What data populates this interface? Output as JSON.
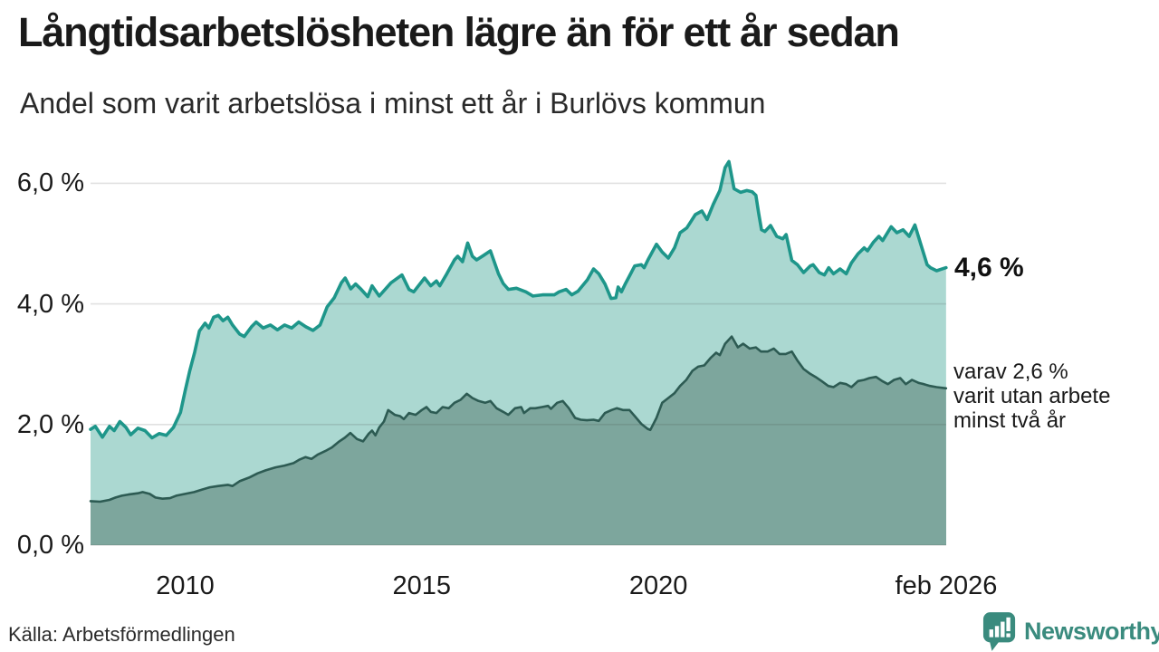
{
  "title": "Långtidsarbetslösheten lägre än för ett år sedan",
  "subtitle": "Andel som varit arbetslösa i minst ett år i Burlövs kommun",
  "source": "Källa: Arbetsförmedlingen",
  "branding": {
    "name": "Newsworthy",
    "color": "#3a8b7e",
    "icon": "bar-chart-speech-bubble-icon"
  },
  "annotations": {
    "latest_value_label": "4,6 %",
    "secondary_label_lines": [
      "varav 2,6 %",
      "varit utan arbete",
      "minst två år"
    ]
  },
  "chart_data": {
    "type": "area",
    "title": "Långtidsarbetslösheten lägre än för ett år sedan",
    "subtitle": "Andel som varit arbetslösa i minst ett år i Burlövs kommun",
    "unit": "%",
    "grid": "horizontal-only",
    "colors": {
      "line_1yr": "#1e968a",
      "fill_1yr": "#abd8d1",
      "line_2yr": "#2d5b53",
      "fill_2yr": "#7da69d",
      "gridline": "#d9d9d9"
    },
    "x_axis": {
      "range_years": [
        2008,
        2026.083
      ],
      "ticks": [
        {
          "label": "2010",
          "year": 2010
        },
        {
          "label": "2015",
          "year": 2015
        },
        {
          "label": "2020",
          "year": 2020
        },
        {
          "label": "feb 2026",
          "year": 2026.083
        }
      ]
    },
    "y_axis": {
      "range": [
        0,
        6.5
      ],
      "gridlines": [
        0,
        2,
        4,
        6
      ],
      "ticks": [
        {
          "label": "0,0 %",
          "value": 0
        },
        {
          "label": "2,0 %",
          "value": 2
        },
        {
          "label": "4,0 %",
          "value": 4
        },
        {
          "label": "6,0 %",
          "value": 6
        }
      ]
    },
    "series": [
      {
        "id": "minst_ett_ar",
        "name": "Andel som varit arbetslösa i minst ett år",
        "latest_value": 4.6,
        "latest_label": "4,6 %",
        "points": [
          [
            2008.0,
            1.92
          ],
          [
            2008.1,
            1.97
          ],
          [
            2008.25,
            1.79
          ],
          [
            2008.4,
            1.97
          ],
          [
            2008.5,
            1.9
          ],
          [
            2008.62,
            2.05
          ],
          [
            2008.75,
            1.95
          ],
          [
            2008.85,
            1.83
          ],
          [
            2009.0,
            1.94
          ],
          [
            2009.15,
            1.9
          ],
          [
            2009.3,
            1.78
          ],
          [
            2009.45,
            1.85
          ],
          [
            2009.6,
            1.82
          ],
          [
            2009.75,
            1.95
          ],
          [
            2009.9,
            2.2
          ],
          [
            2010.0,
            2.56
          ],
          [
            2010.1,
            2.9
          ],
          [
            2010.2,
            3.2
          ],
          [
            2010.3,
            3.55
          ],
          [
            2010.42,
            3.68
          ],
          [
            2010.5,
            3.6
          ],
          [
            2010.6,
            3.78
          ],
          [
            2010.7,
            3.81
          ],
          [
            2010.8,
            3.72
          ],
          [
            2010.9,
            3.78
          ],
          [
            2011.0,
            3.65
          ],
          [
            2011.15,
            3.5
          ],
          [
            2011.25,
            3.46
          ],
          [
            2011.4,
            3.62
          ],
          [
            2011.5,
            3.7
          ],
          [
            2011.65,
            3.6
          ],
          [
            2011.8,
            3.65
          ],
          [
            2011.95,
            3.57
          ],
          [
            2012.1,
            3.65
          ],
          [
            2012.25,
            3.6
          ],
          [
            2012.4,
            3.7
          ],
          [
            2012.55,
            3.62
          ],
          [
            2012.7,
            3.56
          ],
          [
            2012.85,
            3.65
          ],
          [
            2013.0,
            3.95
          ],
          [
            2013.15,
            4.1
          ],
          [
            2013.3,
            4.35
          ],
          [
            2013.38,
            4.43
          ],
          [
            2013.5,
            4.25
          ],
          [
            2013.6,
            4.33
          ],
          [
            2013.72,
            4.24
          ],
          [
            2013.86,
            4.12
          ],
          [
            2013.95,
            4.3
          ],
          [
            2014.1,
            4.13
          ],
          [
            2014.35,
            4.35
          ],
          [
            2014.58,
            4.48
          ],
          [
            2014.73,
            4.24
          ],
          [
            2014.83,
            4.2
          ],
          [
            2015.06,
            4.43
          ],
          [
            2015.19,
            4.3
          ],
          [
            2015.31,
            4.38
          ],
          [
            2015.38,
            4.3
          ],
          [
            2015.53,
            4.5
          ],
          [
            2015.69,
            4.73
          ],
          [
            2015.76,
            4.79
          ],
          [
            2015.86,
            4.7
          ],
          [
            2015.97,
            5.01
          ],
          [
            2016.07,
            4.79
          ],
          [
            2016.16,
            4.73
          ],
          [
            2016.3,
            4.8
          ],
          [
            2016.45,
            4.88
          ],
          [
            2016.62,
            4.5
          ],
          [
            2016.72,
            4.34
          ],
          [
            2016.83,
            4.24
          ],
          [
            2017.0,
            4.26
          ],
          [
            2017.2,
            4.2
          ],
          [
            2017.35,
            4.13
          ],
          [
            2017.55,
            4.15
          ],
          [
            2017.8,
            4.15
          ],
          [
            2017.9,
            4.2
          ],
          [
            2018.05,
            4.24
          ],
          [
            2018.17,
            4.15
          ],
          [
            2018.3,
            4.21
          ],
          [
            2018.5,
            4.4
          ],
          [
            2018.63,
            4.58
          ],
          [
            2018.74,
            4.5
          ],
          [
            2018.87,
            4.33
          ],
          [
            2019.0,
            4.09
          ],
          [
            2019.1,
            4.1
          ],
          [
            2019.15,
            4.28
          ],
          [
            2019.22,
            4.2
          ],
          [
            2019.3,
            4.33
          ],
          [
            2019.4,
            4.48
          ],
          [
            2019.5,
            4.63
          ],
          [
            2019.64,
            4.65
          ],
          [
            2019.7,
            4.6
          ],
          [
            2019.78,
            4.73
          ],
          [
            2019.96,
            4.99
          ],
          [
            2020.08,
            4.86
          ],
          [
            2020.21,
            4.76
          ],
          [
            2020.34,
            4.93
          ],
          [
            2020.46,
            5.18
          ],
          [
            2020.6,
            5.26
          ],
          [
            2020.78,
            5.48
          ],
          [
            2020.92,
            5.54
          ],
          [
            2021.03,
            5.4
          ],
          [
            2021.16,
            5.65
          ],
          [
            2021.3,
            5.88
          ],
          [
            2021.41,
            6.26
          ],
          [
            2021.49,
            6.36
          ],
          [
            2021.6,
            5.91
          ],
          [
            2021.74,
            5.85
          ],
          [
            2021.87,
            5.88
          ],
          [
            2021.98,
            5.86
          ],
          [
            2022.06,
            5.8
          ],
          [
            2022.12,
            5.5
          ],
          [
            2022.18,
            5.23
          ],
          [
            2022.25,
            5.2
          ],
          [
            2022.37,
            5.3
          ],
          [
            2022.5,
            5.12
          ],
          [
            2022.63,
            5.08
          ],
          [
            2022.7,
            5.15
          ],
          [
            2022.82,
            4.72
          ],
          [
            2022.94,
            4.65
          ],
          [
            2023.07,
            4.52
          ],
          [
            2023.21,
            4.63
          ],
          [
            2023.27,
            4.65
          ],
          [
            2023.4,
            4.52
          ],
          [
            2023.51,
            4.48
          ],
          [
            2023.6,
            4.6
          ],
          [
            2023.7,
            4.5
          ],
          [
            2023.84,
            4.58
          ],
          [
            2023.97,
            4.5
          ],
          [
            2024.08,
            4.68
          ],
          [
            2024.22,
            4.83
          ],
          [
            2024.35,
            4.93
          ],
          [
            2024.42,
            4.88
          ],
          [
            2024.54,
            5.02
          ],
          [
            2024.66,
            5.12
          ],
          [
            2024.74,
            5.05
          ],
          [
            2024.92,
            5.28
          ],
          [
            2025.04,
            5.18
          ],
          [
            2025.17,
            5.23
          ],
          [
            2025.3,
            5.12
          ],
          [
            2025.42,
            5.31
          ],
          [
            2025.55,
            4.98
          ],
          [
            2025.68,
            4.65
          ],
          [
            2025.75,
            4.6
          ],
          [
            2025.88,
            4.55
          ],
          [
            2026.08,
            4.6
          ]
        ]
      },
      {
        "id": "minst_tva_ar",
        "name": "varav utan arbete minst två år",
        "latest_value": 2.6,
        "latest_label": "varav 2,6 % varit utan arbete minst två år",
        "points": [
          [
            2008.0,
            0.73
          ],
          [
            2008.2,
            0.72
          ],
          [
            2008.4,
            0.75
          ],
          [
            2008.53,
            0.79
          ],
          [
            2008.66,
            0.82
          ],
          [
            2008.8,
            0.84
          ],
          [
            2009.0,
            0.86
          ],
          [
            2009.1,
            0.88
          ],
          [
            2009.25,
            0.85
          ],
          [
            2009.37,
            0.79
          ],
          [
            2009.52,
            0.77
          ],
          [
            2009.68,
            0.78
          ],
          [
            2009.81,
            0.82
          ],
          [
            2010.0,
            0.85
          ],
          [
            2010.19,
            0.88
          ],
          [
            2010.35,
            0.92
          ],
          [
            2010.52,
            0.96
          ],
          [
            2010.7,
            0.98
          ],
          [
            2010.9,
            1.0
          ],
          [
            2011.0,
            0.98
          ],
          [
            2011.15,
            1.06
          ],
          [
            2011.35,
            1.12
          ],
          [
            2011.53,
            1.19
          ],
          [
            2011.7,
            1.24
          ],
          [
            2011.91,
            1.29
          ],
          [
            2012.1,
            1.32
          ],
          [
            2012.29,
            1.36
          ],
          [
            2012.42,
            1.42
          ],
          [
            2012.54,
            1.46
          ],
          [
            2012.67,
            1.43
          ],
          [
            2012.8,
            1.5
          ],
          [
            2012.96,
            1.56
          ],
          [
            2013.1,
            1.62
          ],
          [
            2013.24,
            1.71
          ],
          [
            2013.37,
            1.78
          ],
          [
            2013.49,
            1.86
          ],
          [
            2013.63,
            1.76
          ],
          [
            2013.76,
            1.72
          ],
          [
            2013.88,
            1.85
          ],
          [
            2013.95,
            1.9
          ],
          [
            2014.02,
            1.82
          ],
          [
            2014.1,
            1.95
          ],
          [
            2014.2,
            2.05
          ],
          [
            2014.29,
            2.24
          ],
          [
            2014.43,
            2.16
          ],
          [
            2014.54,
            2.14
          ],
          [
            2014.62,
            2.09
          ],
          [
            2014.73,
            2.19
          ],
          [
            2014.87,
            2.16
          ],
          [
            2015.0,
            2.24
          ],
          [
            2015.1,
            2.29
          ],
          [
            2015.19,
            2.21
          ],
          [
            2015.31,
            2.19
          ],
          [
            2015.44,
            2.29
          ],
          [
            2015.57,
            2.27
          ],
          [
            2015.69,
            2.36
          ],
          [
            2015.82,
            2.41
          ],
          [
            2015.95,
            2.51
          ],
          [
            2016.07,
            2.44
          ],
          [
            2016.2,
            2.39
          ],
          [
            2016.34,
            2.36
          ],
          [
            2016.45,
            2.39
          ],
          [
            2016.58,
            2.27
          ],
          [
            2016.72,
            2.21
          ],
          [
            2016.83,
            2.16
          ],
          [
            2016.97,
            2.27
          ],
          [
            2017.1,
            2.29
          ],
          [
            2017.16,
            2.19
          ],
          [
            2017.29,
            2.27
          ],
          [
            2017.4,
            2.27
          ],
          [
            2017.54,
            2.29
          ],
          [
            2017.67,
            2.31
          ],
          [
            2017.73,
            2.26
          ],
          [
            2017.86,
            2.36
          ],
          [
            2017.98,
            2.39
          ],
          [
            2018.11,
            2.27
          ],
          [
            2018.24,
            2.11
          ],
          [
            2018.36,
            2.08
          ],
          [
            2018.49,
            2.07
          ],
          [
            2018.63,
            2.08
          ],
          [
            2018.74,
            2.06
          ],
          [
            2018.87,
            2.19
          ],
          [
            2019.01,
            2.24
          ],
          [
            2019.12,
            2.27
          ],
          [
            2019.25,
            2.24
          ],
          [
            2019.39,
            2.24
          ],
          [
            2019.5,
            2.14
          ],
          [
            2019.64,
            2.01
          ],
          [
            2019.77,
            1.93
          ],
          [
            2019.83,
            1.91
          ],
          [
            2019.96,
            2.11
          ],
          [
            2020.08,
            2.36
          ],
          [
            2020.21,
            2.44
          ],
          [
            2020.34,
            2.52
          ],
          [
            2020.46,
            2.64
          ],
          [
            2020.59,
            2.74
          ],
          [
            2020.72,
            2.89
          ],
          [
            2020.84,
            2.96
          ],
          [
            2020.97,
            2.98
          ],
          [
            2021.11,
            3.11
          ],
          [
            2021.22,
            3.19
          ],
          [
            2021.3,
            3.15
          ],
          [
            2021.41,
            3.34
          ],
          [
            2021.55,
            3.46
          ],
          [
            2021.68,
            3.28
          ],
          [
            2021.79,
            3.34
          ],
          [
            2021.93,
            3.26
          ],
          [
            2022.06,
            3.28
          ],
          [
            2022.17,
            3.21
          ],
          [
            2022.31,
            3.21
          ],
          [
            2022.44,
            3.26
          ],
          [
            2022.56,
            3.17
          ],
          [
            2022.69,
            3.17
          ],
          [
            2022.82,
            3.21
          ],
          [
            2022.94,
            3.06
          ],
          [
            2023.07,
            2.92
          ],
          [
            2023.21,
            2.84
          ],
          [
            2023.32,
            2.79
          ],
          [
            2023.45,
            2.72
          ],
          [
            2023.59,
            2.64
          ],
          [
            2023.7,
            2.62
          ],
          [
            2023.84,
            2.69
          ],
          [
            2023.97,
            2.67
          ],
          [
            2024.08,
            2.62
          ],
          [
            2024.22,
            2.72
          ],
          [
            2024.35,
            2.74
          ],
          [
            2024.46,
            2.77
          ],
          [
            2024.6,
            2.79
          ],
          [
            2024.73,
            2.72
          ],
          [
            2024.85,
            2.67
          ],
          [
            2024.98,
            2.74
          ],
          [
            2025.11,
            2.77
          ],
          [
            2025.23,
            2.67
          ],
          [
            2025.36,
            2.74
          ],
          [
            2025.5,
            2.69
          ],
          [
            2025.61,
            2.67
          ],
          [
            2025.74,
            2.64
          ],
          [
            2025.88,
            2.62
          ],
          [
            2026.08,
            2.6
          ]
        ]
      }
    ]
  }
}
